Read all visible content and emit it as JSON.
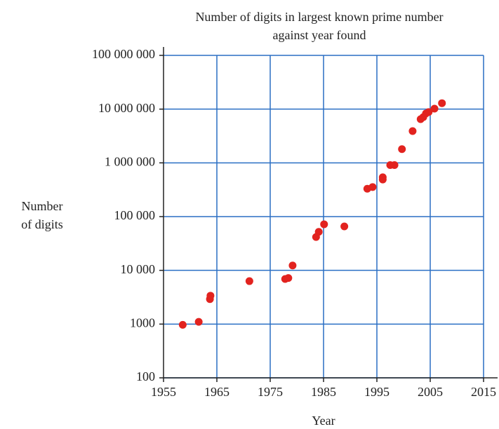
{
  "chart_data": {
    "type": "scatter",
    "title": [
      "Number of digits in largest known prime number",
      "against year found"
    ],
    "x_label": "Year",
    "y_label": [
      "Number",
      "of digits"
    ],
    "y_log": true,
    "grid": true,
    "grid_color": "#2a6fc4",
    "color": "#e2231f",
    "xlim": [
      1955,
      2015
    ],
    "xticks": [
      1955,
      1965,
      1975,
      1985,
      1995,
      2005,
      2015
    ],
    "ylim": [
      100,
      100000000
    ],
    "yticks": [
      100,
      1000,
      {
        "value": 10000,
        "label": "10 000"
      },
      {
        "value": 100000,
        "label": "100 000"
      },
      {
        "value": 1000000,
        "label": "1 000 000"
      },
      {
        "value": 10000000,
        "label": "10 000 000"
      },
      {
        "value": 100000000,
        "label": "100 000 000"
      }
    ],
    "series": [
      {
        "name": "Largest known prime",
        "x": [
          1958.6,
          1961.6,
          1963.7,
          1963.8,
          1971.1,
          1977.8,
          1978.4,
          1979.2,
          1983.6,
          1984.1,
          1985.1,
          1988.9,
          1993.2,
          1994.2,
          1996.1,
          1996.1,
          1997.5,
          1998.3,
          1999.7,
          2001.7,
          2003.2,
          2003.7,
          2004.2,
          2004.7,
          2005.8,
          2007.2
        ],
        "values": [
          969,
          1100,
          2917,
          3376,
          6300,
          6900,
          7200,
          12300,
          41700,
          52000,
          72000,
          65700,
          330000,
          355000,
          490000,
          540000,
          910000,
          910000,
          1800000,
          3900000,
          6500000,
          7100000,
          8300000,
          8800000,
          10200000,
          12900000
        ]
      }
    ]
  }
}
